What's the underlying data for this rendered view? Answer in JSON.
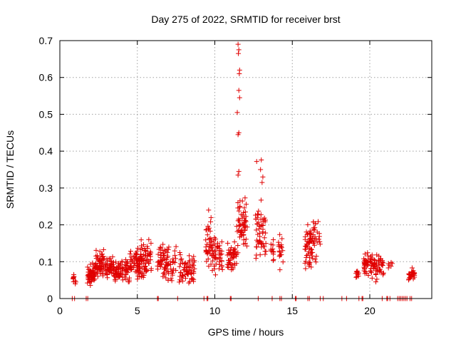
{
  "chart_data": {
    "type": "scatter",
    "title": "Day 275 of 2022, SRMTID for receiver brst",
    "xlabel": "GPS time / hours",
    "ylabel": "SRMTID / TECUs",
    "xlim": [
      0,
      24
    ],
    "ylim": [
      0,
      0.7
    ],
    "xticks": [
      0,
      5,
      10,
      15,
      20
    ],
    "yticks": [
      0,
      0.1,
      0.2,
      0.3,
      0.4,
      0.5,
      0.6,
      0.7
    ],
    "grid": true,
    "marker": "+",
    "color": "#e00000",
    "series": [
      {
        "name": "SRMTID",
        "clusters": [
          {
            "x0": 0.85,
            "x1": 1.05,
            "ymin": 0.04,
            "ymax": 0.065,
            "n": 8
          },
          {
            "x0": 1.75,
            "x1": 2.3,
            "ymin": 0.03,
            "ymax": 0.11,
            "n": 60
          },
          {
            "x0": 2.3,
            "x1": 2.9,
            "ymin": 0.04,
            "ymax": 0.16,
            "n": 55
          },
          {
            "x0": 2.9,
            "x1": 3.5,
            "ymin": 0.04,
            "ymax": 0.13,
            "n": 50
          },
          {
            "x0": 3.5,
            "x1": 4.5,
            "ymin": 0.04,
            "ymax": 0.115,
            "n": 75
          },
          {
            "x0": 4.5,
            "x1": 5.2,
            "ymin": 0.04,
            "ymax": 0.16,
            "n": 60
          },
          {
            "x0": 5.2,
            "x1": 5.9,
            "ymin": 0.05,
            "ymax": 0.18,
            "n": 60
          },
          {
            "x0": 6.3,
            "x1": 7.5,
            "ymin": 0.04,
            "ymax": 0.17,
            "n": 80
          },
          {
            "x0": 7.7,
            "x1": 8.7,
            "ymin": 0.03,
            "ymax": 0.135,
            "n": 65
          },
          {
            "x0": 9.4,
            "x1": 9.8,
            "ymin": 0.07,
            "ymax": 0.25,
            "n": 35
          },
          {
            "x0": 9.8,
            "x1": 10.5,
            "ymin": 0.06,
            "ymax": 0.19,
            "n": 50
          },
          {
            "x0": 10.8,
            "x1": 11.4,
            "ymin": 0.07,
            "ymax": 0.17,
            "n": 45
          },
          {
            "x0": 11.4,
            "x1": 12.1,
            "ymin": 0.09,
            "ymax": 0.32,
            "n": 60
          },
          {
            "x0": 12.6,
            "x1": 13.3,
            "ymin": 0.07,
            "ymax": 0.3,
            "n": 55
          },
          {
            "x0": 13.6,
            "x1": 13.8,
            "ymin": 0.09,
            "ymax": 0.18,
            "n": 12
          },
          {
            "x0": 14.1,
            "x1": 14.4,
            "ymin": 0.06,
            "ymax": 0.19,
            "n": 18
          },
          {
            "x0": 15.8,
            "x1": 16.3,
            "ymin": 0.06,
            "ymax": 0.25,
            "n": 50
          },
          {
            "x0": 16.3,
            "x1": 16.8,
            "ymin": 0.08,
            "ymax": 0.25,
            "n": 30
          },
          {
            "x0": 19.1,
            "x1": 19.3,
            "ymin": 0.05,
            "ymax": 0.09,
            "n": 10
          },
          {
            "x0": 19.6,
            "x1": 20.2,
            "ymin": 0.05,
            "ymax": 0.15,
            "n": 50
          },
          {
            "x0": 20.2,
            "x1": 20.9,
            "ymin": 0.04,
            "ymax": 0.14,
            "n": 45
          },
          {
            "x0": 21.2,
            "x1": 21.5,
            "ymin": 0.08,
            "ymax": 0.1,
            "n": 6
          },
          {
            "x0": 22.5,
            "x1": 22.9,
            "ymin": 0.03,
            "ymax": 0.1,
            "n": 30
          }
        ],
        "points": [
          {
            "x": 11.5,
            "y": 0.69
          },
          {
            "x": 11.55,
            "y": 0.675
          },
          {
            "x": 11.52,
            "y": 0.665
          },
          {
            "x": 11.6,
            "y": 0.62
          },
          {
            "x": 11.58,
            "y": 0.61
          },
          {
            "x": 11.55,
            "y": 0.565
          },
          {
            "x": 11.6,
            "y": 0.545
          },
          {
            "x": 11.45,
            "y": 0.505
          },
          {
            "x": 11.55,
            "y": 0.45
          },
          {
            "x": 11.5,
            "y": 0.445
          },
          {
            "x": 12.7,
            "y": 0.372
          },
          {
            "x": 13.0,
            "y": 0.376
          },
          {
            "x": 11.55,
            "y": 0.345
          },
          {
            "x": 11.5,
            "y": 0.335
          },
          {
            "x": 12.95,
            "y": 0.35
          },
          {
            "x": 13.1,
            "y": 0.33
          },
          {
            "x": 13.05,
            "y": 0.315
          },
          {
            "x": 9.6,
            "y": 0.24
          },
          {
            "x": 0.9,
            "y": 0.065
          },
          {
            "x": 1.0,
            "y": 0.04
          }
        ],
        "zero_points_x": [
          0.8,
          0.95,
          1.7,
          1.8,
          6.3,
          6.35,
          7.6,
          9.3,
          9.5,
          9.55,
          11.0,
          11.05,
          12.8,
          13.7,
          14.2,
          14.3,
          15.2,
          15.25,
          16.0,
          16.1,
          16.8,
          17.0,
          18.2,
          18.5,
          19.3,
          19.5,
          19.55,
          20.8,
          21.1,
          21.15,
          21.3,
          21.8,
          21.9,
          22.0,
          22.1,
          22.2,
          22.3,
          22.4,
          22.6,
          22.7
        ]
      }
    ]
  }
}
